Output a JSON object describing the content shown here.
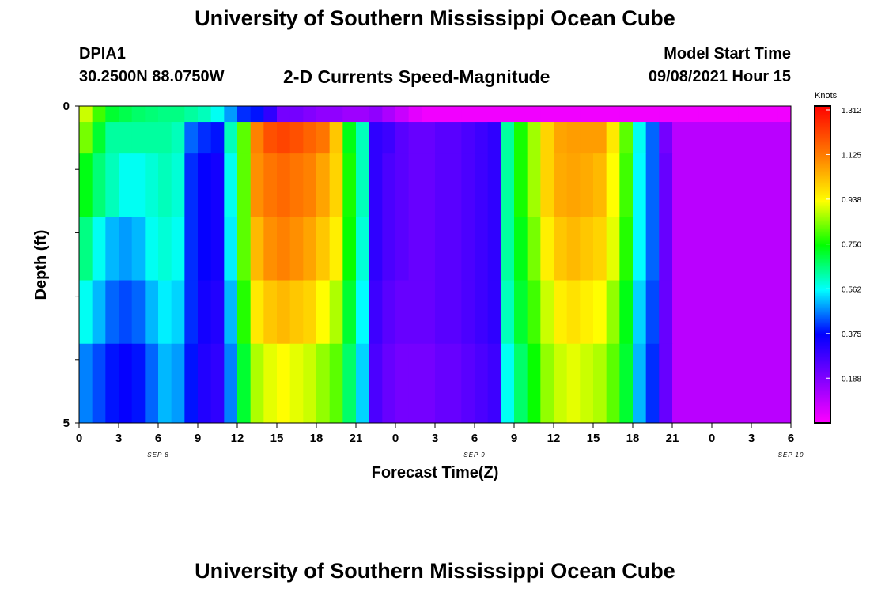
{
  "header": {
    "title": "University of Southern Mississippi Ocean Cube",
    "station_id": "DPIA1",
    "station_coords": "30.2500N  88.0750W",
    "subtitle": "2-D Currents Speed-Magnitude",
    "model_start_label": "Model Start Time",
    "model_start_value": "09/08/2021 Hour 15"
  },
  "footer": {
    "title": "University of Southern Mississippi Ocean Cube"
  },
  "chart_data": {
    "type": "heatmap",
    "title": "2-D Currents Speed-Magnitude",
    "xlabel": "Forecast Time(Z)",
    "ylabel": "Depth (ft)",
    "x_start_hour": 0,
    "x_step_hours": 1,
    "x_tick_labels": [
      "0",
      "3",
      "6",
      "9",
      "12",
      "15",
      "18",
      "21",
      "0",
      "3",
      "6",
      "9",
      "12",
      "15",
      "18",
      "21",
      "0",
      "3",
      "6"
    ],
    "x_tick_step_hours": 3,
    "date_labels": [
      {
        "label": "SEP 8",
        "hour": 6
      },
      {
        "label": "SEP 9",
        "hour": 30
      },
      {
        "label": "SEP 10",
        "hour": 54
      }
    ],
    "xlim": [
      0,
      54
    ],
    "ylim": [
      0,
      5
    ],
    "y_tick_labels": [
      "0",
      "5"
    ],
    "y_inverted": true,
    "colorbar": {
      "label": "Knots",
      "min": 0,
      "max": 1.312,
      "tick_labels": [
        "1.312",
        "1.125",
        "0.938",
        "0.750",
        "0.562",
        "0.375",
        "0.188"
      ]
    },
    "depth_rows": [
      {
        "depth": 0.25,
        "values": [
          0.88,
          0.78,
          0.7,
          0.68,
          0.66,
          0.65,
          0.64,
          0.64,
          0.62,
          0.6,
          0.56,
          0.48,
          0.4,
          0.38,
          0.3,
          0.2,
          0.2,
          0.18,
          0.16,
          0.16,
          0.14,
          0.14,
          0.16,
          0.12,
          0.08,
          0.04,
          0.02,
          0.02,
          0.02,
          0.02,
          0.02,
          0.02,
          0.02,
          0.02,
          0.02,
          0.02,
          0.02,
          0.02,
          0.02,
          0.02,
          0.02,
          0.02,
          0.02,
          0.02,
          0.02,
          0.02,
          0.02,
          0.02,
          0.02,
          0.02,
          0.02,
          0.02,
          0.02,
          0.02
        ]
      },
      {
        "depth": 0.75,
        "values": [
          0.82,
          0.7,
          0.62,
          0.62,
          0.62,
          0.62,
          0.62,
          0.6,
          0.44,
          0.4,
          0.38,
          0.6,
          0.8,
          1.1,
          1.18,
          1.2,
          1.18,
          1.15,
          1.12,
          1.0,
          0.72,
          0.6,
          0.3,
          0.28,
          0.24,
          0.22,
          0.22,
          0.24,
          0.24,
          0.26,
          0.28,
          0.3,
          0.62,
          0.75,
          0.85,
          0.98,
          1.05,
          1.06,
          1.06,
          1.06,
          0.95,
          0.8,
          0.56,
          0.44,
          0.2,
          0.1,
          0.1,
          0.1,
          0.1,
          0.1,
          0.1,
          0.1,
          0.1,
          0.1
        ]
      },
      {
        "depth": 1.75,
        "values": [
          0.72,
          0.65,
          0.6,
          0.56,
          0.56,
          0.58,
          0.6,
          0.58,
          0.4,
          0.36,
          0.34,
          0.56,
          0.8,
          1.08,
          1.12,
          1.14,
          1.12,
          1.1,
          1.05,
          0.98,
          0.75,
          0.6,
          0.3,
          0.26,
          0.24,
          0.22,
          0.22,
          0.24,
          0.24,
          0.26,
          0.28,
          0.3,
          0.62,
          0.75,
          0.85,
          0.98,
          1.04,
          1.05,
          1.04,
          1.02,
          0.92,
          0.78,
          0.55,
          0.44,
          0.22,
          0.1,
          0.1,
          0.1,
          0.1,
          0.1,
          0.1,
          0.1,
          0.1,
          0.1
        ]
      },
      {
        "depth": 2.75,
        "values": [
          0.64,
          0.56,
          0.5,
          0.48,
          0.5,
          0.56,
          0.58,
          0.56,
          0.4,
          0.36,
          0.34,
          0.54,
          0.8,
          1.02,
          1.08,
          1.1,
          1.08,
          1.05,
          1.0,
          0.94,
          0.74,
          0.58,
          0.3,
          0.26,
          0.24,
          0.22,
          0.22,
          0.24,
          0.24,
          0.26,
          0.28,
          0.3,
          0.62,
          0.72,
          0.82,
          0.94,
          1.0,
          1.02,
          1.0,
          0.98,
          0.9,
          0.76,
          0.55,
          0.44,
          0.22,
          0.1,
          0.1,
          0.1,
          0.1,
          0.1,
          0.1,
          0.1,
          0.1,
          0.1
        ]
      },
      {
        "depth": 3.75,
        "values": [
          0.56,
          0.5,
          0.44,
          0.42,
          0.44,
          0.5,
          0.54,
          0.52,
          0.4,
          0.34,
          0.32,
          0.5,
          0.76,
          0.95,
          1.0,
          1.02,
          1.0,
          0.98,
          0.92,
          0.86,
          0.7,
          0.55,
          0.28,
          0.24,
          0.22,
          0.22,
          0.22,
          0.24,
          0.24,
          0.26,
          0.28,
          0.3,
          0.6,
          0.7,
          0.78,
          0.88,
          0.94,
          0.96,
          0.94,
          0.92,
          0.84,
          0.72,
          0.52,
          0.42,
          0.22,
          0.1,
          0.1,
          0.1,
          0.1,
          0.1,
          0.1,
          0.1,
          0.1,
          0.1
        ]
      },
      {
        "depth": 4.5,
        "values": [
          0.46,
          0.42,
          0.38,
          0.36,
          0.38,
          0.44,
          0.5,
          0.48,
          0.38,
          0.32,
          0.3,
          0.46,
          0.7,
          0.86,
          0.9,
          0.92,
          0.9,
          0.88,
          0.84,
          0.8,
          0.66,
          0.52,
          0.26,
          0.22,
          0.2,
          0.2,
          0.2,
          0.22,
          0.22,
          0.24,
          0.26,
          0.28,
          0.56,
          0.66,
          0.74,
          0.84,
          0.88,
          0.9,
          0.88,
          0.86,
          0.8,
          0.7,
          0.5,
          0.4,
          0.22,
          0.1,
          0.1,
          0.1,
          0.1,
          0.1,
          0.1,
          0.1,
          0.1,
          0.1
        ]
      },
      {
        "depth": 5.0,
        "values": [
          0.46,
          0.42,
          0.38,
          0.36,
          0.38,
          0.44,
          0.5,
          0.48,
          0.38,
          0.32,
          0.3,
          0.46,
          0.7,
          0.86,
          0.9,
          0.92,
          0.9,
          0.88,
          0.84,
          0.8,
          0.66,
          0.52,
          0.26,
          0.22,
          0.2,
          0.2,
          0.2,
          0.22,
          0.22,
          0.24,
          0.26,
          0.28,
          0.56,
          0.66,
          0.74,
          0.84,
          0.88,
          0.9,
          0.88,
          0.86,
          0.8,
          0.7,
          0.5,
          0.4,
          0.22,
          0.1,
          0.1,
          0.1,
          0.1,
          0.1,
          0.1,
          0.1,
          0.1,
          0.1
        ]
      }
    ]
  }
}
